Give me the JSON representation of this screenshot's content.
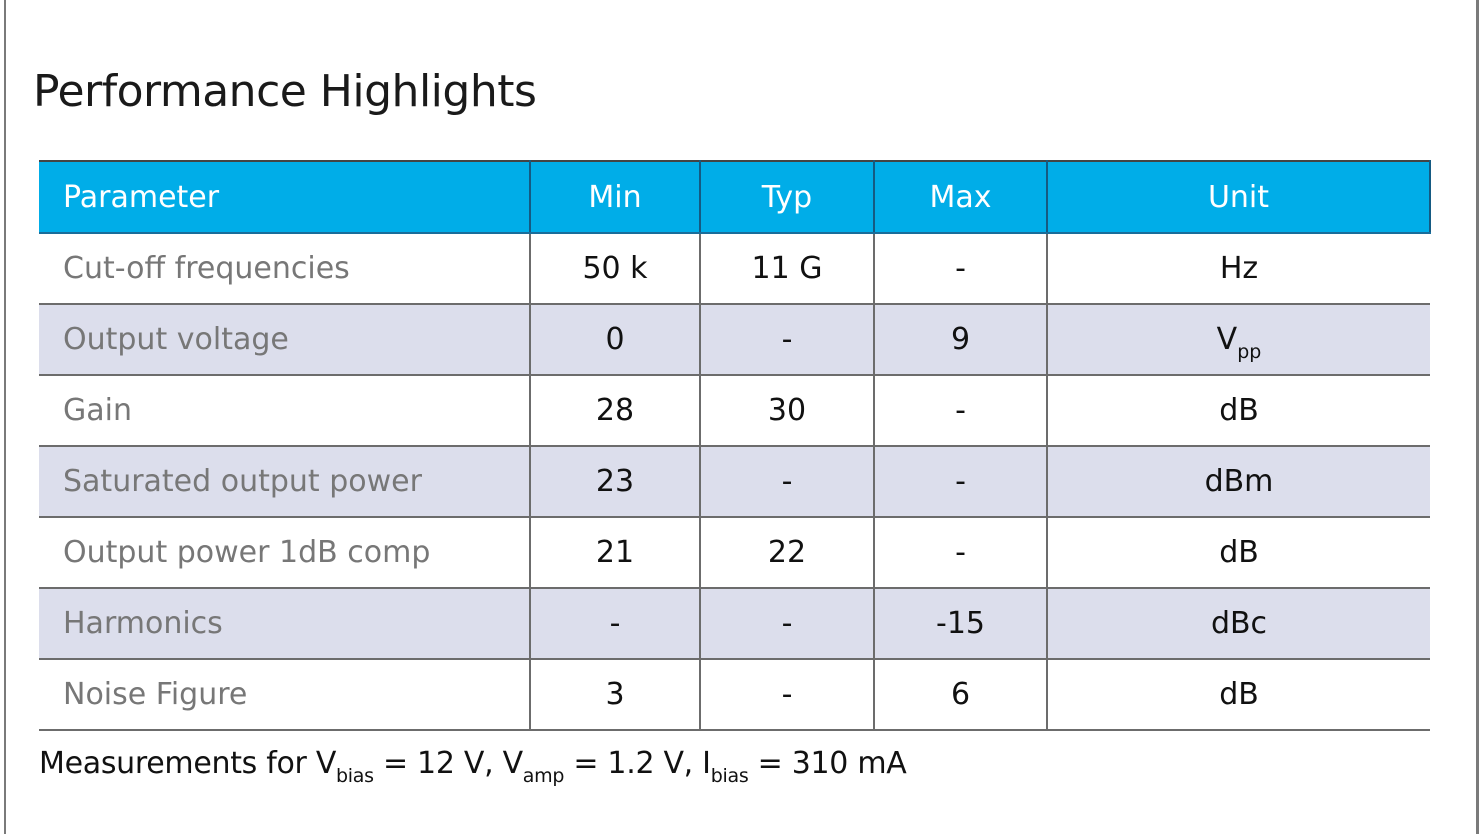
{
  "title": "Performance Highlights",
  "colors": {
    "header_bg": "#00ade8",
    "alt_row_bg": "#dcdeec",
    "param_text": "#777777"
  },
  "table": {
    "headers": [
      "Parameter",
      "Min",
      "Typ",
      "Max",
      "Unit"
    ],
    "rows": [
      {
        "param": "Cut-off frequencies",
        "min": "50 k",
        "typ": "11 G",
        "max": "-",
        "unit": "Hz",
        "unit_sub": ""
      },
      {
        "param": "Output voltage",
        "min": "0",
        "typ": "-",
        "max": "9",
        "unit": "V",
        "unit_sub": "pp"
      },
      {
        "param": "Gain",
        "min": "28",
        "typ": "30",
        "max": "-",
        "unit": "dB",
        "unit_sub": ""
      },
      {
        "param": "Saturated output power",
        "min": "23",
        "typ": "-",
        "max": "-",
        "unit": "dBm",
        "unit_sub": ""
      },
      {
        "param": "Output power 1dB comp",
        "min": "21",
        "typ": "22",
        "max": "-",
        "unit": "dB",
        "unit_sub": ""
      },
      {
        "param": "Harmonics",
        "min": "-",
        "typ": "-",
        "max": "-15",
        "unit": "dBc",
        "unit_sub": ""
      },
      {
        "param": "Noise Figure",
        "min": "3",
        "typ": "-",
        "max": "6",
        "unit": "dB",
        "unit_sub": ""
      }
    ]
  },
  "note": {
    "prefix": "Measurements for ",
    "v1": "V",
    "v1_sub": "bias",
    "v1_val": " = 12 V, ",
    "v2": "V",
    "v2_sub": "amp",
    "v2_val": " = 1.2 V, ",
    "v3": "I",
    "v3_sub": "bias",
    "v3_val": " = 310 mA"
  }
}
